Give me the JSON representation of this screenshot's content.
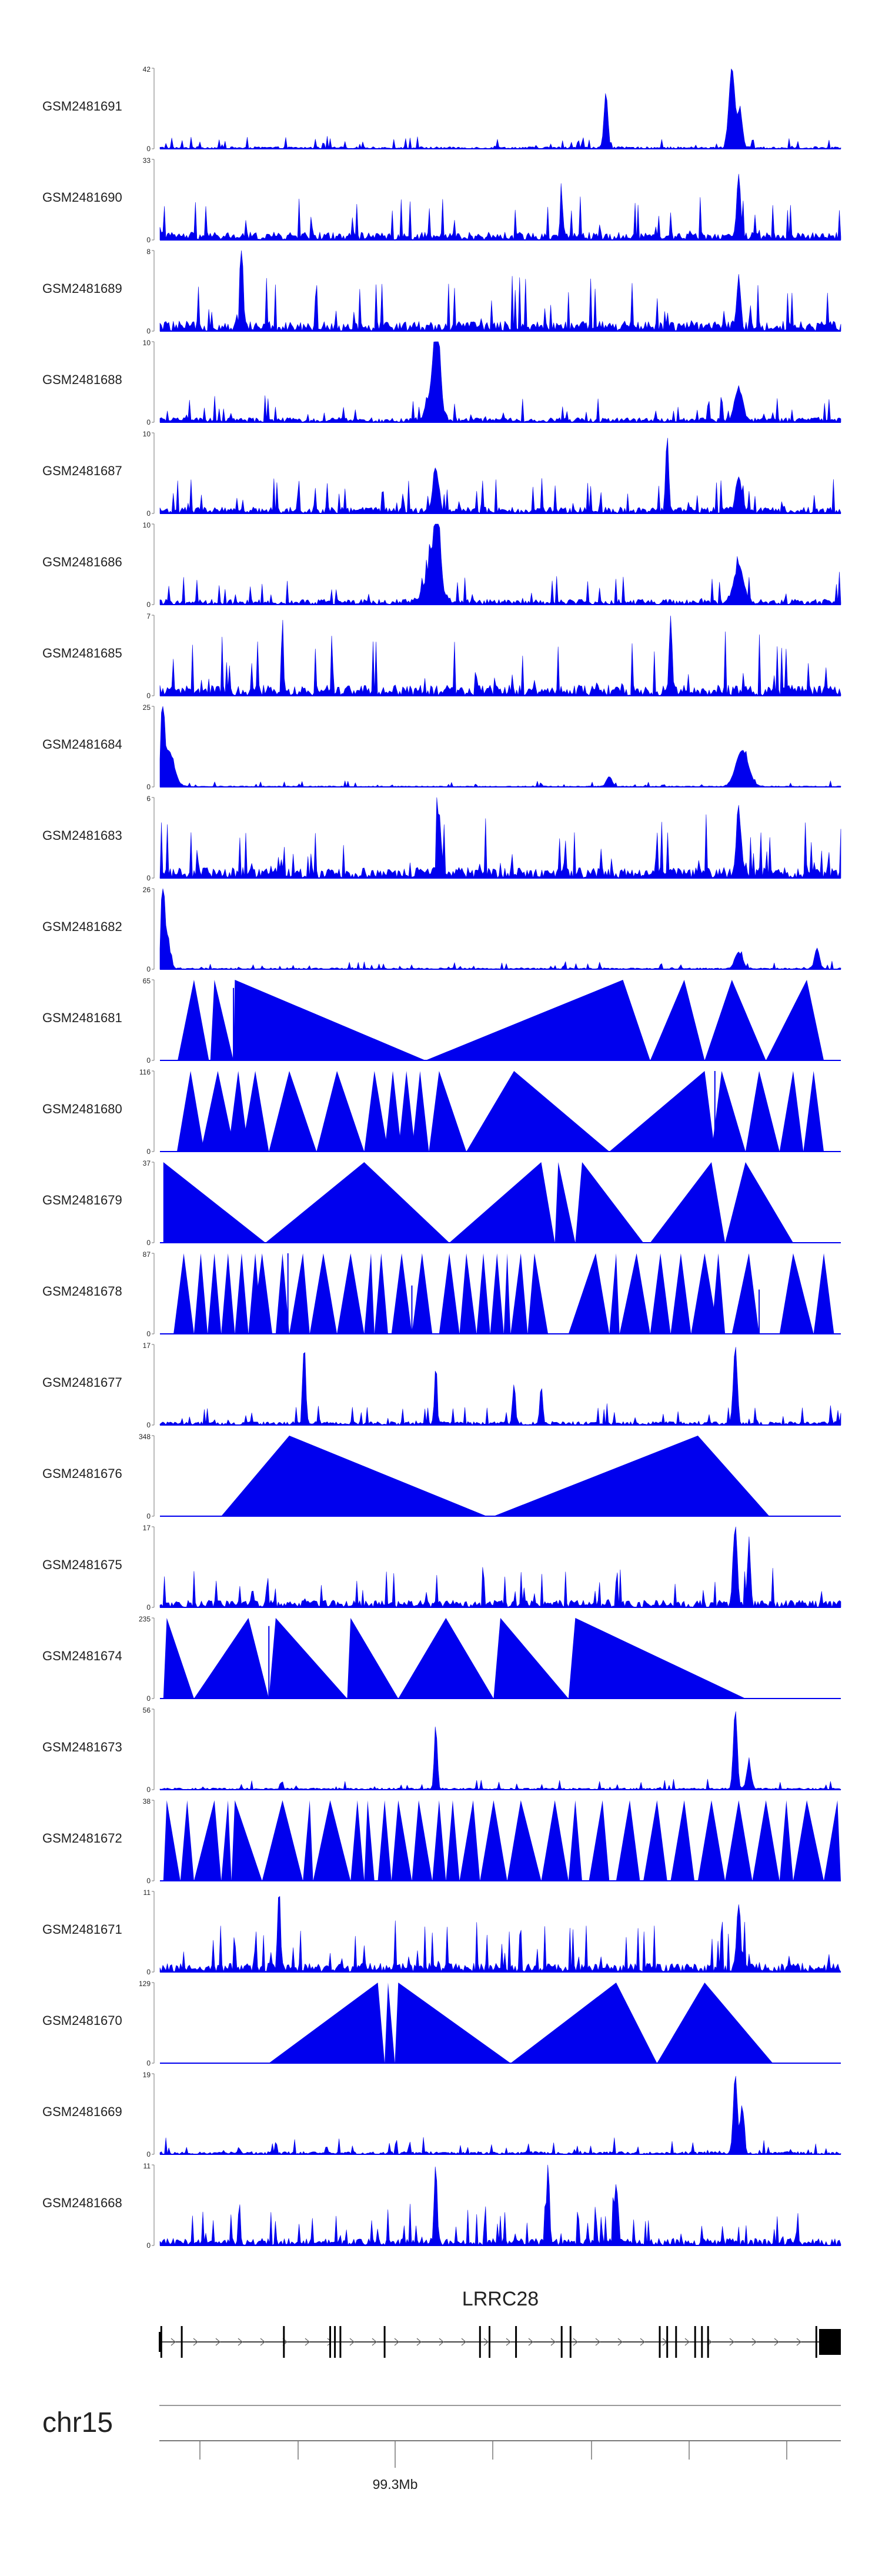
{
  "colors": {
    "track_fill": "#0000EE",
    "axis": "#222222",
    "gene": "#000000",
    "text": "#222222"
  },
  "chart_data": {
    "type": "area",
    "title": "",
    "xlabel": "",
    "ylabel": "",
    "grid": false,
    "legend": "none",
    "chromosome": "chr15",
    "gene": {
      "name": "LRRC28",
      "strand": "+"
    },
    "x_tick_label": "99.3Mb",
    "tracks": [
      {
        "name": "GSM2481691",
        "ymax": 42,
        "ymin": 0,
        "peaks": [
          [
            0.8,
            0.05,
            0.42
          ],
          [
            65.5,
            0.4,
            0.68
          ],
          [
            84.0,
            0.6,
            1.0
          ],
          [
            85.2,
            0.5,
            0.46
          ]
        ],
        "noise": 0.06
      },
      {
        "name": "GSM2481690",
        "ymax": 33,
        "ymin": 0,
        "peaks": [
          [
            85.0,
            0.4,
            0.76
          ],
          [
            59.0,
            0.3,
            0.46
          ]
        ],
        "noise": 0.22
      },
      {
        "name": "GSM2481689",
        "ymax": 8,
        "ymin": 0,
        "peaks": [
          [
            12.0,
            0.3,
            1.0
          ],
          [
            85.0,
            0.4,
            0.6
          ]
        ],
        "noise": 0.28
      },
      {
        "name": "GSM2481688",
        "ymax": 10,
        "ymin": 0,
        "peaks": [
          [
            40.7,
            0.6,
            0.96
          ],
          [
            40.2,
            1.2,
            0.45
          ],
          [
            85.0,
            0.8,
            0.4
          ]
        ],
        "noise": 0.13
      },
      {
        "name": "GSM2481687",
        "ymax": 10,
        "ymin": 0,
        "peaks": [
          [
            74.5,
            0.3,
            0.98
          ],
          [
            40.5,
            0.6,
            0.55
          ],
          [
            85.0,
            0.6,
            0.4
          ]
        ],
        "noise": 0.18
      },
      {
        "name": "GSM2481686",
        "ymax": 10,
        "ymin": 0,
        "peaks": [
          [
            40.7,
            0.6,
            0.98
          ],
          [
            40.0,
            1.5,
            0.45
          ],
          [
            85.0,
            1.0,
            0.45
          ]
        ],
        "noise": 0.15
      },
      {
        "name": "GSM2481685",
        "ymax": 7,
        "ymin": 0,
        "peaks": [
          [
            18.0,
            0.2,
            0.96
          ],
          [
            75.0,
            0.3,
            0.95
          ]
        ],
        "noise": 0.3
      },
      {
        "name": "GSM2481684",
        "ymax": 25,
        "ymin": 0,
        "peaks": [
          [
            0.4,
            0.3,
            0.99
          ],
          [
            1.2,
            1.2,
            0.45
          ],
          [
            85.5,
            1.3,
            0.45
          ],
          [
            66.0,
            0.6,
            0.12
          ]
        ],
        "noise": 0.03
      },
      {
        "name": "GSM2481683",
        "ymax": 6,
        "ymin": 0,
        "peaks": [
          [
            41.0,
            0.4,
            0.8
          ],
          [
            85.0,
            0.5,
            0.8
          ]
        ],
        "noise": 0.3
      },
      {
        "name": "GSM2481682",
        "ymax": 26,
        "ymin": 0,
        "peaks": [
          [
            0.4,
            0.3,
            0.99
          ],
          [
            0.9,
            0.7,
            0.45
          ],
          [
            96.5,
            0.5,
            0.26
          ],
          [
            85.0,
            0.8,
            0.2
          ]
        ],
        "noise": 0.04
      },
      {
        "name": "GSM2481681",
        "ymax": 65,
        "ymin": 0,
        "triangles": [
          [
            2.6,
            5.0,
            7.2
          ],
          [
            7.4,
            8.0,
            10.8
          ],
          [
            10.8,
            11.0,
            39.0
          ],
          [
            39.0,
            68.0,
            72.0
          ],
          [
            72.0,
            77.0,
            80.0
          ],
          [
            80.0,
            84.0,
            89.0
          ],
          [
            89.0,
            95.0,
            97.5
          ]
        ],
        "spikes": [
          [
            10.8,
            0.9
          ]
        ]
      },
      {
        "name": "GSM2481680",
        "ymax": 116,
        "ymin": 0,
        "triangles": [
          [
            2.5,
            4.5,
            6.5
          ],
          [
            6.0,
            8.5,
            11.0
          ],
          [
            10.0,
            11.5,
            13.0
          ],
          [
            12.0,
            14.0,
            16.0
          ],
          [
            16.0,
            19.0,
            23.0
          ],
          [
            23.0,
            26.0,
            30.0
          ],
          [
            30.0,
            31.5,
            33.5
          ],
          [
            33.0,
            34.2,
            35.5
          ],
          [
            35.0,
            36.2,
            37.5
          ],
          [
            37.0,
            38.2,
            39.5
          ],
          [
            39.5,
            41.0,
            45.0
          ],
          [
            45.0,
            52.0,
            66.0
          ],
          [
            66.0,
            80.0,
            81.5
          ],
          [
            81.0,
            82.5,
            86.0
          ],
          [
            86.0,
            88.0,
            91.0
          ],
          [
            91.0,
            93.0,
            94.5
          ],
          [
            94.5,
            96.0,
            97.5
          ]
        ],
        "spikes": [
          [
            81.5,
            1.0
          ],
          [
            82.0,
            0.55
          ]
        ]
      },
      {
        "name": "GSM2481679",
        "ymax": 37,
        "ymin": 0,
        "triangles": [
          [
            0.5,
            0.5,
            15.5
          ],
          [
            15.5,
            30.0,
            42.5
          ],
          [
            42.5,
            56.0,
            58.0
          ],
          [
            58.0,
            58.5,
            61.0
          ],
          [
            61.0,
            62.0,
            71.0
          ],
          [
            72.0,
            81.0,
            83.0
          ],
          [
            83.0,
            86.0,
            93.0
          ]
        ]
      },
      {
        "name": "GSM2481678",
        "ymax": 87,
        "ymin": 0,
        "triangles": [
          [
            2.0,
            3.5,
            5.0
          ],
          [
            5.0,
            6.0,
            7.0
          ],
          [
            7.0,
            8.0,
            9.0
          ],
          [
            9.0,
            10.0,
            11.0
          ],
          [
            11.0,
            12.0,
            13.0
          ],
          [
            13.0,
            14.0,
            15.0
          ],
          [
            13.5,
            15.0,
            16.5
          ],
          [
            17.0,
            18.0,
            19.0
          ],
          [
            19.0,
            21.0,
            22.0
          ],
          [
            22.0,
            24.0,
            26.0
          ],
          [
            26.0,
            28.0,
            30.0
          ],
          [
            30.0,
            31.0,
            31.5
          ],
          [
            31.5,
            32.5,
            33.5
          ],
          [
            34.0,
            35.5,
            37.0
          ],
          [
            37.0,
            38.5,
            40.0
          ],
          [
            41.0,
            42.5,
            44.0
          ],
          [
            44.0,
            45.0,
            46.5
          ],
          [
            46.5,
            47.5,
            48.5
          ],
          [
            48.5,
            49.5,
            50.5
          ],
          [
            50.5,
            51.0,
            51.5
          ],
          [
            51.5,
            53.0,
            54.0
          ],
          [
            54.0,
            55.0,
            57.0
          ],
          [
            60.0,
            64.0,
            66.0
          ],
          [
            66.0,
            67.0,
            67.5
          ],
          [
            67.5,
            70.0,
            72.0
          ],
          [
            72.0,
            73.5,
            75.0
          ],
          [
            75.0,
            76.5,
            78.0
          ],
          [
            78.0,
            80.0,
            82.0
          ],
          [
            81.0,
            82.0,
            83.0
          ],
          [
            84.0,
            86.5,
            88.0
          ],
          [
            91.0,
            93.0,
            96.0
          ],
          [
            96.0,
            97.5,
            99.0
          ]
        ],
        "spikes": [
          [
            18.8,
            1.0
          ],
          [
            15.3,
            0.6
          ],
          [
            37.0,
            0.6
          ],
          [
            67.0,
            0.6
          ],
          [
            88.0,
            0.55
          ]
        ]
      },
      {
        "name": "GSM2481677",
        "ymax": 17,
        "ymin": 0,
        "peaks": [
          [
            21.2,
            0.3,
            0.98
          ],
          [
            84.5,
            0.4,
            0.96
          ],
          [
            40.5,
            0.3,
            0.5
          ],
          [
            52.0,
            0.3,
            0.5
          ],
          [
            56.0,
            0.3,
            0.45
          ]
        ],
        "noise": 0.1
      },
      {
        "name": "GSM2481676",
        "ymax": 348,
        "ymin": 0,
        "triangles": [
          [
            9.0,
            19.0,
            48.0
          ],
          [
            49.0,
            79.0,
            89.5
          ]
        ]
      },
      {
        "name": "GSM2481675",
        "ymax": 17,
        "ymin": 0,
        "peaks": [
          [
            84.5,
            0.4,
            0.98
          ],
          [
            86.5,
            0.3,
            0.8
          ]
        ],
        "noise": 0.2
      },
      {
        "name": "GSM2481674",
        "ymax": 235,
        "ymin": 0,
        "triangles": [
          [
            0.5,
            1.0,
            5.0
          ],
          [
            5.0,
            13.0,
            16.0
          ],
          [
            16.0,
            17.0,
            27.5
          ],
          [
            27.5,
            28.0,
            35.0
          ],
          [
            35.0,
            42.0,
            49.0
          ],
          [
            49.0,
            50.0,
            60.0
          ],
          [
            60.0,
            61.0,
            86.0
          ]
        ],
        "spikes": [
          [
            16.0,
            0.9
          ],
          [
            50.5,
            0.5
          ]
        ]
      },
      {
        "name": "GSM2481673",
        "ymax": 56,
        "ymin": 0,
        "peaks": [
          [
            40.5,
            0.3,
            0.8
          ],
          [
            84.5,
            0.4,
            0.99
          ],
          [
            86.5,
            0.5,
            0.3
          ]
        ],
        "noise": 0.05
      },
      {
        "name": "GSM2481672",
        "ymax": 38,
        "ymin": 0,
        "triangles": [
          [
            0.5,
            1.0,
            3.0
          ],
          [
            3.0,
            4.0,
            5.0
          ],
          [
            5.0,
            8.0,
            9.0
          ],
          [
            9.0,
            10.0,
            10.5
          ],
          [
            10.5,
            11.0,
            15.0
          ],
          [
            15.0,
            18.0,
            21.0
          ],
          [
            21.0,
            22.0,
            22.5
          ],
          [
            22.5,
            25.0,
            28.0
          ],
          [
            28.0,
            29.0,
            30.0
          ],
          [
            30.0,
            30.5,
            31.5
          ],
          [
            32.0,
            33.0,
            34.0
          ],
          [
            34.0,
            35.0,
            37.0
          ],
          [
            37.0,
            38.0,
            40.0
          ],
          [
            40.0,
            41.0,
            42.0
          ],
          [
            42.0,
            43.0,
            44.0
          ],
          [
            44.0,
            46.0,
            47.0
          ],
          [
            47.0,
            49.0,
            51.0
          ],
          [
            51.0,
            53.0,
            56.0
          ],
          [
            56.0,
            58.0,
            60.0
          ],
          [
            60.0,
            61.0,
            62.0
          ],
          [
            63.0,
            65.0,
            66.0
          ],
          [
            67.0,
            69.0,
            70.5
          ],
          [
            71.0,
            73.0,
            74.5
          ],
          [
            75.0,
            77.0,
            78.5
          ],
          [
            79.0,
            81.0,
            83.0
          ],
          [
            83.0,
            85.0,
            87.0
          ],
          [
            87.0,
            89.0,
            91.0
          ],
          [
            91.0,
            92.0,
            93.0
          ],
          [
            93.0,
            95.0,
            97.5
          ],
          [
            97.5,
            99.5,
            100
          ]
        ]
      },
      {
        "name": "GSM2481671",
        "ymax": 11,
        "ymin": 0,
        "peaks": [
          [
            17.5,
            0.3,
            0.97
          ],
          [
            85.0,
            0.4,
            0.8
          ]
        ],
        "noise": 0.25
      },
      {
        "name": "GSM2481670",
        "ymax": 129,
        "ymin": 0,
        "triangles": [
          [
            16.0,
            32.0,
            33.0
          ],
          [
            33.0,
            33.5,
            34.5
          ],
          [
            34.5,
            35.0,
            51.5
          ],
          [
            51.5,
            67.0,
            73.0
          ],
          [
            73.0,
            80.0,
            90.0
          ]
        ]
      },
      {
        "name": "GSM2481669",
        "ymax": 19,
        "ymin": 0,
        "peaks": [
          [
            84.5,
            0.4,
            0.98
          ],
          [
            85.5,
            0.4,
            0.6
          ]
        ],
        "noise": 0.08
      },
      {
        "name": "GSM2481668",
        "ymax": 11,
        "ymin": 0,
        "peaks": [
          [
            40.5,
            0.3,
            0.98
          ],
          [
            57.0,
            0.3,
            0.98
          ],
          [
            67.0,
            0.4,
            0.75
          ]
        ],
        "noise": 0.2
      }
    ],
    "exons": [
      0.2,
      3.2,
      18.2,
      25.0,
      25.7,
      26.5,
      33.0,
      47.0,
      48.4,
      52.3,
      59.0,
      60.3,
      73.4,
      74.5,
      75.8,
      78.6,
      79.6,
      80.5,
      96.4
    ]
  }
}
